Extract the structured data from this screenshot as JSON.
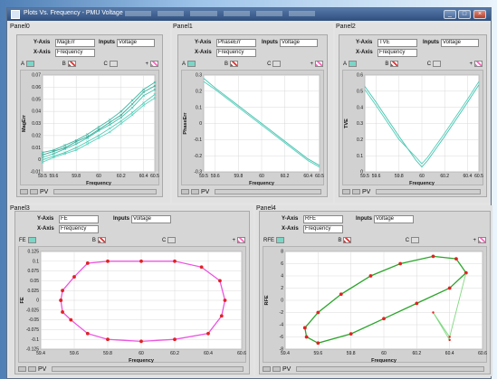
{
  "window": {
    "title": "Plots Vs. Frequency - PMU Voltage",
    "buttons": {
      "minimize": "_",
      "maximize": "□",
      "close": "×"
    }
  },
  "colors": {
    "cyan_series": "#43c2ae",
    "magenta_series": "#ec55e0",
    "green_series": "#2aa52a",
    "marker_red": "#e22222"
  },
  "panels": [
    {
      "label": "Panel0",
      "y_axis_label": "Y-Axis",
      "y_axis_value": "MagErr",
      "x_axis_label": "X-Axis",
      "x_axis_value": "Frequency",
      "inputs_label": "Inputs",
      "inputs_value": "Voltage",
      "cursors": [
        {
          "name": "A"
        },
        {
          "name": "B"
        },
        {
          "name": "C"
        },
        {
          "name": "+"
        }
      ],
      "toolbar_text": "PV"
    },
    {
      "label": "Panel1",
      "y_axis_label": "Y-Axis",
      "y_axis_value": "PhaseErr",
      "x_axis_label": "X-Axis",
      "x_axis_value": "Frequency",
      "inputs_label": "Inputs",
      "inputs_value": "Voltage",
      "cursors": [
        {
          "name": "A"
        },
        {
          "name": "B"
        },
        {
          "name": "C"
        },
        {
          "name": "+"
        }
      ],
      "toolbar_text": "PV"
    },
    {
      "label": "Panel2",
      "y_axis_label": "Y-Axis",
      "y_axis_value": "TVE",
      "x_axis_label": "X-Axis",
      "x_axis_value": "Frequency",
      "inputs_label": "Inputs",
      "inputs_value": "Voltage",
      "cursors": [
        {
          "name": "A"
        },
        {
          "name": "B"
        },
        {
          "name": "C"
        },
        {
          "name": "+"
        }
      ],
      "toolbar_text": "PV"
    },
    {
      "label": "Panel3",
      "y_axis_label": "Y-Axis",
      "y_axis_value": "FE",
      "x_axis_label": "X-Axis",
      "x_axis_value": "Frequency",
      "inputs_label": "Inputs",
      "inputs_value": "Voltage",
      "cursors": [
        {
          "name": "FE"
        },
        {
          "name": "B"
        },
        {
          "name": "C"
        },
        {
          "name": "+"
        }
      ],
      "toolbar_text": "PV"
    },
    {
      "label": "Panel4",
      "y_axis_label": "Y-Axis",
      "y_axis_value": "RFE",
      "x_axis_label": "X-Axis",
      "x_axis_value": "Frequency",
      "inputs_label": "Inputs",
      "inputs_value": "Voltage",
      "cursors": [
        {
          "name": "RFE"
        },
        {
          "name": "B"
        },
        {
          "name": "C"
        },
        {
          "name": "+"
        }
      ],
      "toolbar_text": "PV"
    }
  ],
  "chart_data": [
    {
      "type": "line",
      "xlabel": "Frequency",
      "ylabel": "MagErr",
      "xlim": [
        59.5,
        60.5
      ],
      "ylim": [
        -0.01,
        0.07
      ],
      "x_ticks": [
        59.5,
        59.6,
        59.8,
        60,
        60.2,
        60.4,
        60.5
      ],
      "x_tick_labels": [
        "59.5",
        "59.6",
        "59.8",
        "60",
        "60.2",
        "60.4",
        "60.5"
      ],
      "y_ticks": [
        -0.01,
        0,
        0.01,
        0.02,
        0.03,
        0.04,
        0.05,
        0.06,
        0.07
      ],
      "y_tick_labels": [
        "-0.01",
        "0",
        "0.01",
        "0.02",
        "0.03",
        "0.04",
        "0.05",
        "0.06",
        "0.07"
      ],
      "grid": true,
      "series": [
        {
          "x": [
            59.5,
            59.6,
            59.7,
            59.8,
            59.9,
            60.0,
            60.1,
            60.2,
            60.3,
            60.4,
            60.5
          ],
          "y": [
            0.002,
            0.005,
            0.009,
            0.013,
            0.018,
            0.024,
            0.029,
            0.035,
            0.043,
            0.053,
            0.058
          ]
        },
        {
          "x": [
            59.5,
            59.6,
            59.7,
            59.8,
            59.9,
            60.0,
            60.1,
            60.2,
            60.3,
            60.4,
            60.5
          ],
          "y": [
            0.006,
            0.008,
            0.012,
            0.016,
            0.021,
            0.027,
            0.033,
            0.04,
            0.049,
            0.058,
            0.064
          ]
        },
        {
          "x": [
            59.5,
            59.6,
            59.7,
            59.8,
            59.9,
            60.0,
            60.1,
            60.2,
            60.3,
            60.4,
            60.5
          ],
          "y": [
            0.0,
            0.003,
            0.006,
            0.01,
            0.015,
            0.02,
            0.026,
            0.032,
            0.039,
            0.047,
            0.054
          ]
        },
        {
          "x": [
            59.5,
            59.6,
            59.7,
            59.8,
            59.9,
            60.0,
            60.1,
            60.2,
            60.3,
            60.4,
            60.5
          ],
          "y": [
            0.004,
            0.007,
            0.01,
            0.015,
            0.019,
            0.025,
            0.031,
            0.037,
            0.046,
            0.056,
            0.061
          ]
        },
        {
          "x": [
            59.5,
            59.6,
            59.7,
            59.8,
            59.9,
            60.0,
            60.1,
            60.2,
            60.3,
            60.4,
            60.5
          ],
          "y": [
            -0.002,
            0.002,
            0.005,
            0.008,
            0.013,
            0.018,
            0.023,
            0.03,
            0.037,
            0.045,
            0.051
          ]
        }
      ]
    },
    {
      "type": "line",
      "xlabel": "Frequency",
      "ylabel": "PhaseErr",
      "xlim": [
        59.5,
        60.5
      ],
      "ylim": [
        -0.3,
        0.3
      ],
      "x_ticks": [
        59.5,
        59.6,
        59.8,
        60,
        60.2,
        60.4,
        60.5
      ],
      "x_tick_labels": [
        "59.5",
        "59.6",
        "59.8",
        "60",
        "60.2",
        "60.4",
        "60.5"
      ],
      "y_ticks": [
        -0.3,
        -0.2,
        -0.1,
        0,
        0.1,
        0.2,
        0.3
      ],
      "y_tick_labels": [
        "-0.3",
        "-0.2",
        "-0.1",
        "0",
        "0.1",
        "0.2",
        "0.3"
      ],
      "grid": true,
      "series": [
        {
          "x": [
            59.5,
            59.6,
            59.8,
            60.0,
            60.2,
            60.4,
            60.5
          ],
          "y": [
            0.28,
            0.22,
            0.11,
            0.0,
            -0.11,
            -0.22,
            -0.26
          ]
        },
        {
          "x": [
            59.5,
            59.6,
            59.8,
            60.0,
            60.2,
            60.4,
            60.5
          ],
          "y": [
            0.26,
            0.21,
            0.1,
            -0.01,
            -0.12,
            -0.23,
            -0.27
          ]
        }
      ]
    },
    {
      "type": "line",
      "xlabel": "Frequency",
      "ylabel": "TVE",
      "xlim": [
        59.5,
        60.5
      ],
      "ylim": [
        0,
        0.6
      ],
      "x_ticks": [
        59.5,
        59.6,
        59.8,
        60,
        60.2,
        60.4,
        60.5
      ],
      "x_tick_labels": [
        "59.5",
        "59.6",
        "59.8",
        "60",
        "60.2",
        "60.4",
        "60.5"
      ],
      "y_ticks": [
        0,
        0.1,
        0.2,
        0.3,
        0.4,
        0.5,
        0.6
      ],
      "y_tick_labels": [
        "0",
        "0.1",
        "0.2",
        "0.3",
        "0.4",
        "0.5",
        "0.6"
      ],
      "grid": true,
      "series": [
        {
          "x": [
            59.5,
            59.6,
            59.8,
            59.95,
            60.0,
            60.05,
            60.2,
            60.4,
            60.5
          ],
          "y": [
            0.53,
            0.43,
            0.22,
            0.07,
            0.03,
            0.07,
            0.22,
            0.43,
            0.54
          ]
        },
        {
          "x": [
            59.5,
            59.6,
            59.8,
            59.95,
            60.0,
            60.05,
            60.2,
            60.4,
            60.5
          ],
          "y": [
            0.51,
            0.41,
            0.2,
            0.09,
            0.05,
            0.09,
            0.24,
            0.45,
            0.56
          ]
        }
      ]
    },
    {
      "type": "line",
      "xlabel": "Frequency",
      "ylabel": "FE",
      "xlim": [
        59.4,
        60.6
      ],
      "ylim": [
        -0.125,
        0.125
      ],
      "x_ticks": [
        59.4,
        59.6,
        59.8,
        60,
        60.2,
        60.4,
        60.6
      ],
      "x_tick_labels": [
        "59.4",
        "59.6",
        "59.8",
        "60",
        "60.2",
        "60.4",
        "60.6"
      ],
      "y_ticks": [
        -0.125,
        -0.1,
        -0.075,
        -0.05,
        -0.025,
        0,
        0.025,
        0.05,
        0.075,
        0.1,
        0.125
      ],
      "y_tick_labels": [
        "-0.125",
        "-0.1",
        "-0.075",
        "-0.05",
        "-0.025",
        "0",
        "0.025",
        "0.05",
        "0.075",
        "0.1",
        "0.125"
      ],
      "grid": true,
      "series": [
        {
          "x": [
            59.52,
            59.53,
            59.6,
            59.68,
            59.8,
            60.0,
            60.2,
            60.36,
            60.47,
            60.5,
            60.48,
            60.4,
            60.2,
            60.0,
            59.8,
            59.68,
            59.58,
            59.53,
            59.52
          ],
          "y": [
            0.0,
            0.025,
            0.06,
            0.095,
            0.1,
            0.1,
            0.1,
            0.085,
            0.05,
            0.0,
            -0.04,
            -0.085,
            -0.1,
            -0.105,
            -0.1,
            -0.085,
            -0.05,
            -0.03,
            0.0
          ]
        }
      ]
    },
    {
      "type": "line",
      "xlabel": "Frequency",
      "ylabel": "RFE",
      "xlim": [
        59.4,
        60.6
      ],
      "ylim": [
        -8,
        8
      ],
      "x_ticks": [
        59.4,
        59.6,
        59.8,
        60,
        60.2,
        60.4,
        60.6
      ],
      "x_tick_labels": [
        "59.4",
        "59.6",
        "59.8",
        "60",
        "60.2",
        "60.4",
        "60.6"
      ],
      "y_ticks": [
        -8,
        -6,
        -4,
        -2,
        0,
        2,
        4,
        6,
        8
      ],
      "y_tick_labels": [
        "-8",
        "-6",
        "-4",
        "-2",
        "0",
        "2",
        "4",
        "6",
        "8"
      ],
      "grid": true,
      "series": [
        {
          "x": [
            59.52,
            59.6,
            59.74,
            59.92,
            60.1,
            60.3,
            60.44,
            60.5,
            60.4,
            60.2,
            60.0,
            59.8,
            59.6,
            59.53,
            59.52
          ],
          "y": [
            -4.5,
            -2.0,
            1.0,
            4.0,
            6.0,
            7.2,
            6.8,
            4.5,
            2.0,
            -0.5,
            -3.0,
            -5.5,
            -7.0,
            -6.0,
            -4.5
          ]
        },
        {
          "x": [
            60.5,
            60.4,
            60.3,
            60.4
          ],
          "y": [
            4.5,
            -6.0,
            -2.0,
            -6.5
          ]
        }
      ]
    }
  ]
}
